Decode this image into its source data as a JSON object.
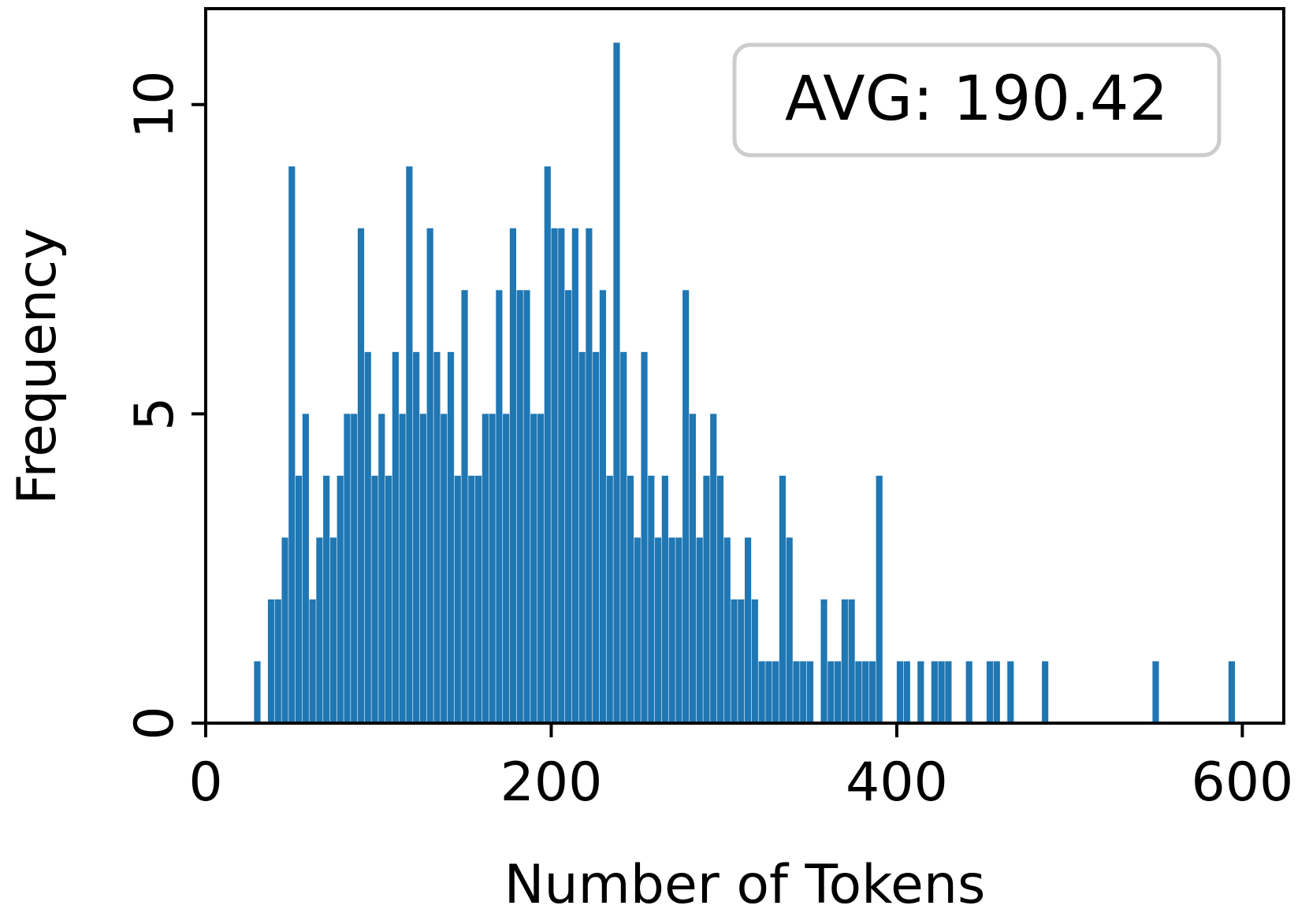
{
  "chart_data": {
    "type": "histogram",
    "xlabel": "Number of Tokens",
    "ylabel": "Frequency",
    "annotation": "AVG: 190.42",
    "color": "#1f77b4",
    "bins": [
      28,
      32,
      36,
      40,
      44,
      48,
      52,
      56,
      60,
      64,
      68,
      72,
      76,
      80,
      84,
      88,
      92,
      96,
      100,
      104,
      108,
      112,
      116,
      120,
      124,
      128,
      132,
      136,
      140,
      144,
      148,
      152,
      156,
      160,
      164,
      168,
      172,
      176,
      180,
      184,
      188,
      192,
      196,
      200,
      204,
      208,
      212,
      216,
      220,
      224,
      228,
      232,
      236,
      240,
      244,
      248,
      252,
      256,
      260,
      264,
      268,
      272,
      276,
      280,
      284,
      288,
      292,
      296,
      300,
      304,
      308,
      312,
      316,
      320,
      324,
      328,
      332,
      336,
      340,
      344,
      348,
      352,
      356,
      360,
      364,
      368,
      372,
      376,
      380,
      384,
      388,
      392,
      396,
      400,
      404,
      408,
      412,
      416,
      420,
      424,
      428,
      432,
      436,
      440,
      444,
      448,
      452,
      456,
      460,
      464,
      468,
      472,
      476,
      480,
      484,
      488,
      492,
      496,
      500,
      504,
      508,
      512,
      516,
      520,
      524,
      528,
      532,
      536,
      540,
      544,
      548,
      552,
      556,
      560,
      564,
      568,
      572,
      576,
      580,
      584,
      588,
      592,
      596
    ],
    "values": [
      1,
      0,
      2,
      2,
      3,
      9,
      4,
      5,
      2,
      3,
      4,
      3,
      4,
      5,
      5,
      8,
      6,
      4,
      5,
      4,
      6,
      5,
      9,
      6,
      5,
      8,
      6,
      5,
      6,
      4,
      7,
      4,
      4,
      5,
      5,
      7,
      5,
      8,
      7,
      7,
      5,
      5,
      9,
      8,
      8,
      7,
      8,
      6,
      8,
      6,
      7,
      4,
      11,
      6,
      4,
      3,
      6,
      4,
      3,
      4,
      3,
      3,
      7,
      5,
      3,
      4,
      5,
      4,
      3,
      2,
      2,
      3,
      2,
      1,
      1,
      1,
      4,
      3,
      1,
      1,
      1,
      0,
      2,
      1,
      1,
      2,
      2,
      1,
      1,
      1,
      4,
      0,
      0,
      1,
      1,
      0,
      1,
      0,
      1,
      1,
      1,
      0,
      0,
      1,
      0,
      0,
      1,
      1,
      0,
      1,
      0,
      0,
      0,
      0,
      1,
      0,
      0,
      0,
      0,
      0,
      0,
      0,
      0,
      0,
      0,
      0,
      0,
      0,
      0,
      0,
      1,
      0,
      0,
      0,
      0,
      0,
      0,
      0,
      0,
      0,
      0,
      1
    ],
    "xlim": [
      0,
      624
    ],
    "ylim": [
      0,
      11.55
    ],
    "xticks": [
      0,
      200,
      400,
      600
    ],
    "yticks": [
      0,
      5,
      10
    ]
  }
}
